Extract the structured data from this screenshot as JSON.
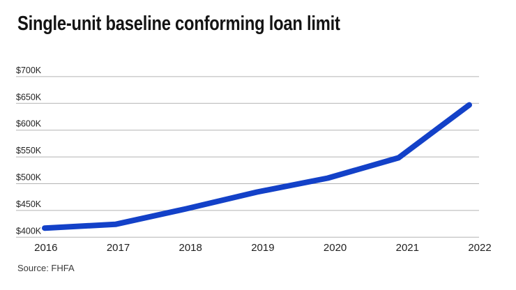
{
  "chart_data": {
    "type": "line",
    "title": "Single-unit baseline conforming loan limit",
    "source": "Source: FHFA",
    "x": [
      "2016",
      "2017",
      "2018",
      "2019",
      "2020",
      "2021",
      "2022"
    ],
    "series": [
      {
        "name": "Single-unit baseline conforming loan limit",
        "values": [
          417000,
          424100,
          453100,
          484350,
          510400,
          548250,
          647200
        ]
      }
    ],
    "ylim": [
      400000,
      700000
    ],
    "y_ticks": [
      400000,
      450000,
      500000,
      550000,
      600000,
      650000,
      700000
    ],
    "y_tick_labels": [
      "$400K",
      "$450K",
      "$500K",
      "$550K",
      "$600K",
      "$650K",
      "$700K"
    ],
    "grid": "horizontal-only",
    "legend": "none",
    "line_color": "#1341c8",
    "grid_color": "#b3b3b3",
    "line_width": 8
  }
}
